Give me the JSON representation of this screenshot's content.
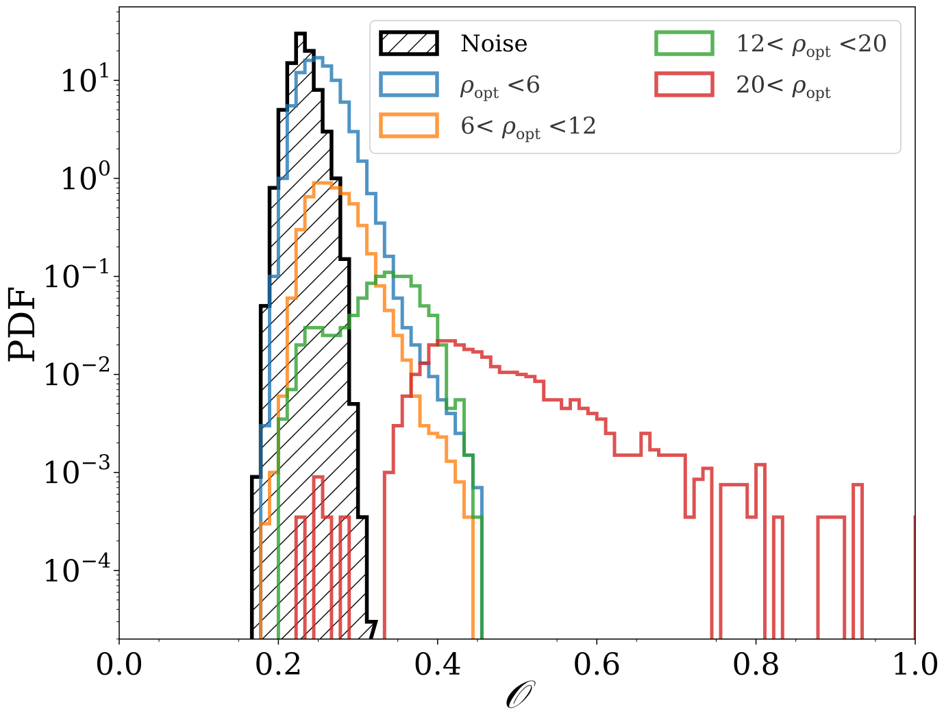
{
  "chart_data": {
    "type": "histogram",
    "title": "",
    "xlabel": "𝒪",
    "ylabel": "PDF",
    "xlim": [
      0.0,
      1.0
    ],
    "ylim_log10": [
      -4.7,
      1.75
    ],
    "yscale": "log",
    "grid": false,
    "legend_position": "top-right",
    "x_ticks": [
      {
        "value": 0.0,
        "label": "0.0"
      },
      {
        "value": 0.2,
        "label": "0.2"
      },
      {
        "value": 0.4,
        "label": "0.4"
      },
      {
        "value": 0.6,
        "label": "0.6"
      },
      {
        "value": 0.8,
        "label": "0.8"
      },
      {
        "value": 1.0,
        "label": "1.0"
      }
    ],
    "y_ticks": [
      {
        "log10": 1,
        "base": "10",
        "exp": "1"
      },
      {
        "log10": 0,
        "base": "10",
        "exp": "0"
      },
      {
        "log10": -1,
        "base": "10",
        "exp": "−1"
      },
      {
        "log10": -2,
        "base": "10",
        "exp": "−2"
      },
      {
        "log10": -3,
        "base": "10",
        "exp": "−3"
      },
      {
        "log10": -4,
        "base": "10",
        "exp": "−4"
      }
    ],
    "series": [
      {
        "name": "Noise",
        "legend": {
          "pre": "Noise",
          "sym": "",
          "sub": "",
          "post": ""
        },
        "color": "#000000",
        "hatch": true,
        "opacity": 1.0,
        "edges": [
          0.1667,
          0.1778,
          0.1889,
          0.2,
          0.2111,
          0.2222,
          0.2333,
          0.2444,
          0.2556,
          0.2667,
          0.2778,
          0.2889,
          0.3,
          0.3111
        ],
        "values": [
          0.0009,
          0.05,
          0.8,
          5.0,
          15.0,
          30.0,
          20.0,
          8.0,
          3.0,
          1.0,
          0.15,
          0.005,
          0.00035,
          3e-05
        ]
      },
      {
        "name": "ρopt <6",
        "legend": {
          "pre": "",
          "sym": "ρ",
          "sub": "opt",
          "post": " <6"
        },
        "color": "#1f77b4",
        "hatch": false,
        "opacity": 0.78,
        "edges": [
          0.1667,
          0.1778,
          0.1889,
          0.2,
          0.2111,
          0.2222,
          0.2333,
          0.2444,
          0.2556,
          0.2667,
          0.2778,
          0.2889,
          0.3,
          0.3111,
          0.3222,
          0.3333,
          0.3444,
          0.3556,
          0.3667,
          0.3778,
          0.3889,
          0.4,
          0.4111,
          0.4222,
          0.4333,
          0.4444,
          0.4556
        ],
        "values": [
          0.0,
          0.003,
          0.1,
          1.0,
          5.5,
          12.0,
          16.0,
          17.0,
          14.0,
          10.0,
          6.0,
          3.0,
          1.5,
          0.7,
          0.35,
          0.16,
          0.06,
          0.03,
          0.02,
          0.013,
          0.0095,
          0.0055,
          0.004,
          0.0025,
          0.0015,
          0.0007,
          0.0
        ]
      },
      {
        "name": "6< ρopt <12",
        "legend": {
          "pre": "6< ",
          "sym": "ρ",
          "sub": "opt",
          "post": " <12"
        },
        "color": "#ff7f0e",
        "hatch": false,
        "opacity": 0.78,
        "edges": [
          0.1778,
          0.1889,
          0.2,
          0.2111,
          0.2222,
          0.2333,
          0.2444,
          0.2556,
          0.2667,
          0.2778,
          0.2889,
          0.3,
          0.3111,
          0.3222,
          0.3333,
          0.3444,
          0.3556,
          0.3667,
          0.3778,
          0.3889,
          0.4,
          0.4111,
          0.4222,
          0.4333,
          0.4444
        ],
        "values": [
          0.0003,
          0.001,
          0.006,
          0.06,
          0.3,
          0.65,
          0.9,
          0.9,
          0.8,
          0.7,
          0.55,
          0.33,
          0.17,
          0.08,
          0.045,
          0.025,
          0.014,
          0.006,
          0.003,
          0.0025,
          0.0023,
          0.0013,
          0.0008,
          0.00035,
          0.0
        ]
      },
      {
        "name": "12< ρopt <20",
        "legend": {
          "pre": "12< ",
          "sym": "ρ",
          "sub": "opt",
          "post": " <20"
        },
        "color": "#2ca02c",
        "hatch": false,
        "opacity": 0.78,
        "edges": [
          0.2,
          0.2111,
          0.2222,
          0.2333,
          0.2444,
          0.2556,
          0.2667,
          0.2778,
          0.2889,
          0.3,
          0.3111,
          0.3222,
          0.3333,
          0.3444,
          0.3556,
          0.3667,
          0.3778,
          0.3889,
          0.4,
          0.4111,
          0.4222,
          0.4333,
          0.4444,
          0.4556
        ],
        "values": [
          0.0035,
          0.007,
          0.02,
          0.03,
          0.03,
          0.025,
          0.025,
          0.03,
          0.04,
          0.06,
          0.085,
          0.1,
          0.11,
          0.1,
          0.1,
          0.08,
          0.05,
          0.04,
          0.02,
          0.0045,
          0.0055,
          0.0015,
          0.00035,
          0.0
        ]
      },
      {
        "name": "20< ρopt",
        "legend": {
          "pre": "20< ",
          "sym": "ρ",
          "sub": "opt",
          "post": ""
        },
        "color": "#d62728",
        "hatch": false,
        "opacity": 0.8,
        "edges": [
          0.2222,
          0.2333,
          0.2444,
          0.2556,
          0.2667,
          0.2778,
          0.2889,
          0.3,
          0.3111,
          0.3222,
          0.3333,
          0.3444,
          0.3556,
          0.3667,
          0.3778,
          0.3889,
          0.4,
          0.4111,
          0.4222,
          0.4333,
          0.4444,
          0.4556,
          0.4667,
          0.4778,
          0.4889,
          0.5,
          0.5111,
          0.5222,
          0.5333,
          0.5444,
          0.5556,
          0.5667,
          0.5778,
          0.5889,
          0.6,
          0.6111,
          0.6222,
          0.6333,
          0.6444,
          0.6556,
          0.6667,
          0.6778,
          0.6889,
          0.7,
          0.7111,
          0.7222,
          0.7333,
          0.7444,
          0.7556,
          0.7667,
          0.7778,
          0.7889,
          0.8,
          0.8111,
          0.8222,
          0.8333,
          0.8444,
          0.8556,
          0.8667,
          0.8778,
          0.8889,
          0.9,
          0.9111,
          0.9222,
          0.9333,
          0.9444,
          0.9556,
          0.9667,
          0.9778,
          0.9889,
          1.0
        ],
        "values": [
          0.00035,
          0.0,
          0.0009,
          0.00035,
          0.0,
          0.00035,
          0.0,
          0.0,
          0.0,
          0.0,
          0.001,
          0.003,
          0.006,
          0.01,
          0.013,
          0.02,
          0.022,
          0.022,
          0.02,
          0.018,
          0.017,
          0.015,
          0.012,
          0.0105,
          0.0105,
          0.01,
          0.0095,
          0.0085,
          0.0055,
          0.0055,
          0.0045,
          0.0055,
          0.0045,
          0.004,
          0.0035,
          0.0025,
          0.0015,
          0.0015,
          0.0015,
          0.0025,
          0.0017,
          0.0015,
          0.0015,
          0.0015,
          0.00035,
          0.00085,
          0.0011,
          0.0,
          0.00075,
          0.00075,
          0.00075,
          0.00035,
          0.0012,
          0.0,
          0.00035,
          0.0,
          0.0,
          0.0,
          0.0,
          0.00035,
          0.00035,
          0.00035,
          0.0,
          0.00075,
          0.0,
          0.0,
          0.0,
          0.0,
          0.0,
          0.0,
          0.00035
        ],
        "trailing_bins_note": ""
      }
    ]
  }
}
